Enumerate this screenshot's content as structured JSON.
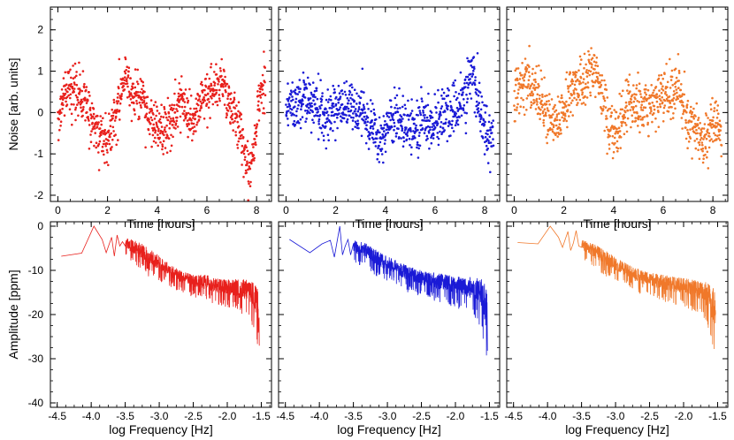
{
  "chart_data": [
    {
      "type": "scatter",
      "xlabel": "Time [hours]",
      "ylabel": "Noise [arb. units]",
      "xlim": [
        -0.3,
        8.6
      ],
      "ylim": [
        -2.15,
        2.55
      ],
      "xticks": [
        0,
        2,
        4,
        6,
        8
      ],
      "yticks": [
        -2,
        -1,
        0,
        1,
        2
      ],
      "color": "#e8201c",
      "x_range": [
        0,
        8.35
      ],
      "n_points": 900,
      "trend": [
        [
          0,
          0
        ],
        [
          0.4,
          0.6
        ],
        [
          0.8,
          0.4
        ],
        [
          1.2,
          0.2
        ],
        [
          1.6,
          -0.5
        ],
        [
          2.0,
          -0.6
        ],
        [
          2.3,
          -0.1
        ],
        [
          2.7,
          0.9
        ],
        [
          3.0,
          0.4
        ],
        [
          3.4,
          0.3
        ],
        [
          3.8,
          -0.3
        ],
        [
          4.2,
          -0.5
        ],
        [
          4.6,
          -0.2
        ],
        [
          5.0,
          0.3
        ],
        [
          5.4,
          -0.4
        ],
        [
          5.8,
          0.3
        ],
        [
          6.2,
          0.5
        ],
        [
          6.6,
          0.7
        ],
        [
          7.0,
          0.1
        ],
        [
          7.4,
          -0.6
        ],
        [
          7.7,
          -1.4
        ],
        [
          7.9,
          -0.8
        ],
        [
          8.1,
          0.5
        ],
        [
          8.35,
          0.6
        ]
      ],
      "spread": 0.3,
      "row": 0,
      "col": 0
    },
    {
      "type": "scatter",
      "xlabel": "Time [hours]",
      "ylabel": "",
      "xlim": [
        -0.3,
        8.6
      ],
      "ylim": [
        -2.15,
        2.55
      ],
      "xticks": [
        0,
        2,
        4,
        6,
        8
      ],
      "yticks": [
        -2,
        -1,
        0,
        1,
        2
      ],
      "color": "#1a1ad6",
      "x_range": [
        0,
        8.35
      ],
      "n_points": 900,
      "trend": [
        [
          0,
          0.1
        ],
        [
          0.5,
          0.3
        ],
        [
          1.0,
          0.2
        ],
        [
          1.5,
          -0.1
        ],
        [
          2.0,
          0.1
        ],
        [
          2.5,
          0.2
        ],
        [
          3.0,
          0.0
        ],
        [
          3.5,
          -0.3
        ],
        [
          3.8,
          -0.9
        ],
        [
          4.2,
          -0.2
        ],
        [
          4.6,
          -0.1
        ],
        [
          5.0,
          -0.4
        ],
        [
          5.5,
          -0.2
        ],
        [
          6.0,
          -0.3
        ],
        [
          6.5,
          0.0
        ],
        [
          7.0,
          0.1
        ],
        [
          7.4,
          0.9
        ],
        [
          7.7,
          0.4
        ],
        [
          8.0,
          -0.4
        ],
        [
          8.35,
          -0.6
        ]
      ],
      "spread": 0.32,
      "row": 0,
      "col": 1
    },
    {
      "type": "scatter",
      "xlabel": "Time [hours]",
      "ylabel": "",
      "xlim": [
        -0.3,
        8.6
      ],
      "ylim": [
        -2.15,
        2.55
      ],
      "xticks": [
        0,
        2,
        4,
        6,
        8
      ],
      "yticks": [
        -2,
        -1,
        0,
        1,
        2
      ],
      "color": "#f0782a",
      "x_range": [
        0,
        8.35
      ],
      "n_points": 900,
      "trend": [
        [
          0,
          0.3
        ],
        [
          0.4,
          0.8
        ],
        [
          0.8,
          0.5
        ],
        [
          1.2,
          0.2
        ],
        [
          1.6,
          -0.2
        ],
        [
          2.0,
          0.1
        ],
        [
          2.4,
          0.6
        ],
        [
          2.8,
          0.7
        ],
        [
          3.2,
          1.0
        ],
        [
          3.5,
          0.6
        ],
        [
          3.8,
          -0.4
        ],
        [
          4.2,
          -0.5
        ],
        [
          4.6,
          0.3
        ],
        [
          5.0,
          0.1
        ],
        [
          5.4,
          0.0
        ],
        [
          5.8,
          0.4
        ],
        [
          6.2,
          0.3
        ],
        [
          6.6,
          0.6
        ],
        [
          7.0,
          -0.2
        ],
        [
          7.4,
          -0.4
        ],
        [
          7.7,
          -0.8
        ],
        [
          8.0,
          -0.2
        ],
        [
          8.35,
          -0.5
        ]
      ],
      "spread": 0.32,
      "row": 0,
      "col": 2
    },
    {
      "type": "line",
      "xlabel": "log Frequency [Hz]",
      "ylabel": "Amplitude [ppm]",
      "xlim": [
        -4.6,
        -1.35
      ],
      "ylim": [
        -41,
        1
      ],
      "xticks": [
        -4.5,
        -4.0,
        -3.5,
        -3.0,
        -2.5,
        -2.0,
        -1.5
      ],
      "xtick_labels": [
        "-4.5",
        "-4.0",
        "-3.5",
        "-3.0",
        "-2.5",
        "-2.0",
        "-1.5"
      ],
      "yticks": [
        -40,
        -30,
        -20,
        -10,
        0
      ],
      "color": "#e8201c",
      "x": [
        -4.44,
        -4.14,
        -3.96,
        -3.84,
        -3.78,
        -3.7,
        -3.66,
        -3.62,
        -3.58,
        -3.54
      ],
      "y": [
        -6.8,
        -6.1,
        0,
        -3.0,
        -6.0,
        -2.5,
        -6.8,
        -2.0,
        -4.5,
        -3.5
      ],
      "envelope": [
        [
          -3.5,
          -7,
          -2.5
        ],
        [
          -3.3,
          -10,
          -3.5
        ],
        [
          -3.1,
          -12,
          -5.5
        ],
        [
          -2.9,
          -13,
          -8
        ],
        [
          -2.7,
          -15,
          -10
        ],
        [
          -2.5,
          -16,
          -11
        ],
        [
          -2.3,
          -17,
          -11
        ],
        [
          -2.1,
          -18,
          -12
        ],
        [
          -1.9,
          -19,
          -12
        ],
        [
          -1.7,
          -21,
          -12
        ],
        [
          -1.6,
          -24,
          -13
        ],
        [
          -1.55,
          -30,
          -14
        ],
        [
          -1.53,
          -35,
          -20
        ]
      ],
      "row": 1,
      "col": 0
    },
    {
      "type": "line",
      "xlabel": "log Frequency [Hz]",
      "ylabel": "",
      "xlim": [
        -4.6,
        -1.35
      ],
      "ylim": [
        -41,
        1
      ],
      "xticks": [
        -4.5,
        -4.0,
        -3.5,
        -3.0,
        -2.5,
        -2.0,
        -1.5
      ],
      "xtick_labels": [
        "-4.5",
        "-4.0",
        "-3.5",
        "-3.0",
        "-2.5",
        "-2.0",
        "-1.5"
      ],
      "yticks": [
        -40,
        -30,
        -20,
        -10,
        0
      ],
      "color": "#1a1ad6",
      "x": [
        -4.44,
        -4.14,
        -3.96,
        -3.84,
        -3.78,
        -3.7,
        -3.66,
        -3.62,
        -3.58,
        -3.54
      ],
      "y": [
        -3.0,
        -6.0,
        -4.0,
        -3.2,
        -7.0,
        0,
        -6.5,
        -4.5,
        -3.0,
        -6.5
      ],
      "envelope": [
        [
          -3.5,
          -8,
          -3
        ],
        [
          -3.3,
          -10,
          -4
        ],
        [
          -3.1,
          -12,
          -6
        ],
        [
          -2.9,
          -13,
          -7.5
        ],
        [
          -2.7,
          -15,
          -9
        ],
        [
          -2.5,
          -16,
          -10
        ],
        [
          -2.3,
          -17,
          -10.5
        ],
        [
          -2.1,
          -18,
          -11
        ],
        [
          -1.9,
          -19,
          -11.5
        ],
        [
          -1.7,
          -21,
          -11.5
        ],
        [
          -1.6,
          -25,
          -12
        ],
        [
          -1.55,
          -31,
          -13
        ],
        [
          -1.53,
          -32,
          -16
        ]
      ],
      "row": 1,
      "col": 1
    },
    {
      "type": "line",
      "xlabel": "log Frequency [Hz]",
      "ylabel": "",
      "xlim": [
        -4.6,
        -1.35
      ],
      "ylim": [
        -41,
        1
      ],
      "xticks": [
        -4.5,
        -4.0,
        -3.5,
        -3.0,
        -2.5,
        -2.0,
        -1.5
      ],
      "xtick_labels": [
        "-4.5",
        "-4.0",
        "-3.5",
        "-3.0",
        "-2.5",
        "-2.0",
        "-1.5"
      ],
      "yticks": [
        -40,
        -30,
        -20,
        -10,
        0
      ],
      "color": "#f0782a",
      "x": [
        -4.44,
        -4.14,
        -3.96,
        -3.84,
        -3.78,
        -3.7,
        -3.66,
        -3.62,
        -3.58,
        -3.54
      ],
      "y": [
        -3.7,
        -4.0,
        0,
        -2.5,
        -4.8,
        -1.2,
        -5.5,
        -3.8,
        -1.0,
        -4.5
      ],
      "envelope": [
        [
          -3.5,
          -7,
          -3
        ],
        [
          -3.3,
          -10,
          -4
        ],
        [
          -3.1,
          -12,
          -6
        ],
        [
          -2.9,
          -13,
          -8
        ],
        [
          -2.7,
          -15,
          -9.5
        ],
        [
          -2.5,
          -16,
          -10.5
        ],
        [
          -2.3,
          -17,
          -11
        ],
        [
          -2.1,
          -18,
          -11.5
        ],
        [
          -1.9,
          -19,
          -12
        ],
        [
          -1.7,
          -21,
          -12.5
        ],
        [
          -1.6,
          -25,
          -13
        ],
        [
          -1.55,
          -31,
          -14
        ],
        [
          -1.53,
          -32,
          -17
        ]
      ],
      "row": 1,
      "col": 2
    }
  ]
}
